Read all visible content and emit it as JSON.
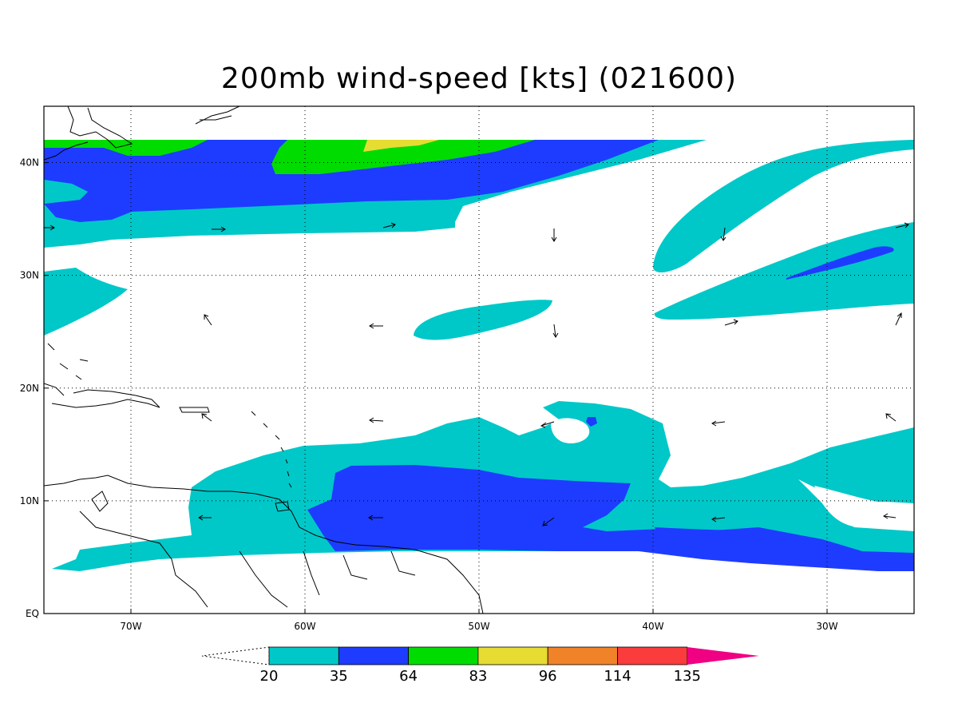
{
  "title": "200mb wind-speed [kts] (021600)",
  "map": {
    "lat_labels": [
      "40N",
      "30N",
      "20N",
      "10N",
      "EQ"
    ],
    "lon_labels": [
      "70W",
      "60W",
      "50W",
      "40W",
      "30W"
    ],
    "lon_range": [
      -75,
      -25
    ],
    "lat_range": [
      0,
      45
    ]
  },
  "colorbar": {
    "levels": [
      "20",
      "35",
      "64",
      "83",
      "96",
      "114",
      "135"
    ],
    "colors": [
      "#00c8c8",
      "#1e3cff",
      "#00dc00",
      "#e6dc32",
      "#f08228",
      "#fa3c3c",
      "#f00082"
    ]
  },
  "colors": {
    "cyan": "#00c8c8",
    "blue": "#1e3cff",
    "green": "#00dc00",
    "yellow": "#e6dc32"
  }
}
